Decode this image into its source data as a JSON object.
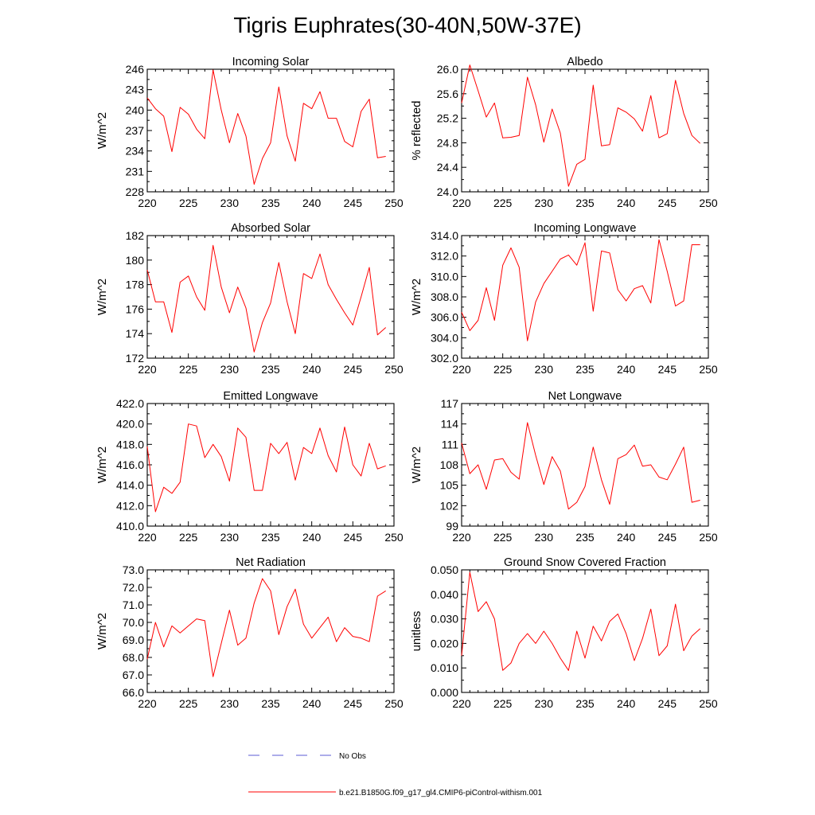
{
  "figure": {
    "title": "Tigris Euphrates(30-40N,50W-37E)",
    "legend": [
      {
        "label": "No Obs",
        "color": "#5b5bd6",
        "dash": "dashed"
      },
      {
        "label": "b.e21.B1850G.f09_g17_gl4.CMIP6-piControl-withism.001",
        "color": "#ff0000",
        "dash": "solid"
      }
    ]
  },
  "chart_data": [
    {
      "type": "line",
      "title": "Incoming Solar",
      "ylabel": "W/m^2",
      "xlim": [
        220,
        250
      ],
      "ylim": [
        228,
        246
      ],
      "xticks": [
        220,
        225,
        230,
        235,
        240,
        245,
        250
      ],
      "yticks": [
        "228",
        "231",
        "234",
        "237",
        "240",
        "243",
        "246"
      ],
      "color": "#ff0000",
      "x": [
        220,
        221,
        222,
        223,
        224,
        225,
        226,
        227,
        228,
        229,
        230,
        231,
        232,
        233,
        234,
        235,
        236,
        237,
        238,
        239,
        240,
        241,
        242,
        243,
        244,
        245,
        246,
        247,
        248,
        249
      ],
      "y": [
        241.8,
        240.2,
        239.1,
        233.9,
        240.4,
        239.4,
        237.2,
        235.8,
        245.9,
        240.0,
        235.2,
        239.5,
        236.2,
        229.1,
        232.9,
        235.2,
        243.4,
        236.2,
        232.5,
        241.0,
        240.2,
        242.7,
        238.8,
        238.8,
        235.4,
        234.6,
        239.8,
        241.6,
        233.0,
        233.2
      ]
    },
    {
      "type": "line",
      "title": "Albedo",
      "ylabel": "% reflected",
      "xlim": [
        220,
        250
      ],
      "ylim": [
        24.0,
        26.0
      ],
      "xticks": [
        220,
        225,
        230,
        235,
        240,
        245,
        250
      ],
      "yticks": [
        "24.0",
        "24.4",
        "24.8",
        "25.2",
        "25.6",
        "26.0"
      ],
      "color": "#ff0000",
      "x": [
        220,
        221,
        222,
        223,
        224,
        225,
        226,
        227,
        228,
        229,
        230,
        231,
        232,
        233,
        234,
        235,
        236,
        237,
        238,
        239,
        240,
        241,
        242,
        243,
        244,
        245,
        246,
        247,
        248,
        249
      ],
      "y": [
        25.45,
        26.07,
        25.65,
        25.22,
        25.45,
        24.88,
        24.89,
        24.92,
        25.87,
        25.42,
        24.81,
        25.35,
        24.96,
        24.09,
        24.45,
        24.53,
        25.74,
        24.75,
        24.77,
        25.37,
        25.3,
        25.19,
        24.99,
        25.57,
        24.88,
        24.95,
        25.82,
        25.28,
        24.92,
        24.79
      ]
    },
    {
      "type": "line",
      "title": "Absorbed Solar",
      "ylabel": "W/m^2",
      "xlim": [
        220,
        250
      ],
      "ylim": [
        172,
        182
      ],
      "xticks": [
        220,
        225,
        230,
        235,
        240,
        245,
        250
      ],
      "yticks": [
        "172",
        "174",
        "176",
        "178",
        "180",
        "182"
      ],
      "color": "#ff0000",
      "x": [
        220,
        221,
        222,
        223,
        224,
        225,
        226,
        227,
        228,
        229,
        230,
        231,
        232,
        233,
        234,
        235,
        236,
        237,
        238,
        239,
        240,
        241,
        242,
        243,
        244,
        245,
        246,
        247,
        248,
        249
      ],
      "y": [
        179.2,
        176.6,
        176.6,
        174.1,
        178.2,
        178.7,
        177.0,
        175.9,
        181.2,
        177.8,
        175.7,
        177.8,
        176.1,
        172.5,
        174.9,
        176.5,
        179.8,
        176.6,
        174.0,
        178.9,
        178.5,
        180.5,
        178.0,
        176.8,
        175.7,
        174.7,
        177.0,
        179.4,
        173.9,
        174.5
      ]
    },
    {
      "type": "line",
      "title": "Incoming Longwave",
      "ylabel": "W/m^2",
      "xlim": [
        220,
        250
      ],
      "ylim": [
        302.0,
        314.0
      ],
      "xticks": [
        220,
        225,
        230,
        235,
        240,
        245,
        250
      ],
      "yticks": [
        "302.0",
        "304.0",
        "306.0",
        "308.0",
        "310.0",
        "312.0",
        "314.0"
      ],
      "color": "#ff0000",
      "x": [
        220,
        221,
        222,
        223,
        224,
        225,
        226,
        227,
        228,
        229,
        230,
        231,
        232,
        233,
        234,
        235,
        236,
        237,
        238,
        239,
        240,
        241,
        242,
        243,
        244,
        245,
        246,
        247,
        248,
        249
      ],
      "y": [
        306.5,
        304.7,
        305.7,
        308.9,
        305.7,
        311.1,
        312.8,
        310.9,
        303.7,
        307.5,
        309.3,
        310.5,
        311.7,
        312.1,
        311.1,
        313.3,
        306.6,
        312.5,
        312.3,
        308.7,
        307.6,
        308.8,
        309.1,
        307.4,
        313.6,
        310.5,
        307.1,
        307.6,
        313.1,
        313.1
      ]
    },
    {
      "type": "line",
      "title": "Emitted Longwave",
      "ylabel": "W/m^2",
      "xlim": [
        220,
        250
      ],
      "ylim": [
        410.0,
        422.0
      ],
      "xticks": [
        220,
        225,
        230,
        235,
        240,
        245,
        250
      ],
      "yticks": [
        "410.0",
        "412.0",
        "414.0",
        "416.0",
        "418.0",
        "420.0",
        "422.0"
      ],
      "color": "#ff0000",
      "x": [
        220,
        221,
        222,
        223,
        224,
        225,
        226,
        227,
        228,
        229,
        230,
        231,
        232,
        233,
        234,
        235,
        236,
        237,
        238,
        239,
        240,
        241,
        242,
        243,
        244,
        245,
        246,
        247,
        248,
        249
      ],
      "y": [
        417.8,
        411.4,
        413.8,
        413.2,
        414.3,
        420.0,
        419.8,
        416.7,
        418.0,
        416.8,
        414.4,
        419.6,
        418.7,
        413.5,
        413.5,
        418.1,
        417.1,
        418.2,
        414.5,
        417.7,
        417.1,
        419.6,
        416.9,
        415.3,
        419.7,
        416.0,
        414.9,
        418.1,
        415.6,
        415.9
      ]
    },
    {
      "type": "line",
      "title": "Net Longwave",
      "ylabel": "W/m^2",
      "xlim": [
        220,
        250
      ],
      "ylim": [
        99,
        117
      ],
      "xticks": [
        220,
        225,
        230,
        235,
        240,
        245,
        250
      ],
      "yticks": [
        "99",
        "102",
        "105",
        "108",
        "111",
        "114",
        "117"
      ],
      "color": "#ff0000",
      "x": [
        220,
        221,
        222,
        223,
        224,
        225,
        226,
        227,
        228,
        229,
        230,
        231,
        232,
        233,
        234,
        235,
        236,
        237,
        238,
        239,
        240,
        241,
        242,
        243,
        244,
        245,
        246,
        247,
        248,
        249
      ],
      "y": [
        111.2,
        106.7,
        108.0,
        104.4,
        108.7,
        108.9,
        106.9,
        105.9,
        114.2,
        109.4,
        105.1,
        109.2,
        107.1,
        101.5,
        102.5,
        104.8,
        110.6,
        105.8,
        102.2,
        108.9,
        109.5,
        110.9,
        107.8,
        108.0,
        106.2,
        105.8,
        108.1,
        110.6,
        102.5,
        102.8
      ]
    },
    {
      "type": "line",
      "title": "Net Radiation",
      "ylabel": "W/m^2",
      "xlim": [
        220,
        250
      ],
      "ylim": [
        66.0,
        73.0
      ],
      "xticks": [
        220,
        225,
        230,
        235,
        240,
        245,
        250
      ],
      "yticks": [
        "66.0",
        "67.0",
        "68.0",
        "69.0",
        "70.0",
        "71.0",
        "72.0",
        "73.0"
      ],
      "color": "#ff0000",
      "x": [
        220,
        221,
        222,
        223,
        224,
        225,
        226,
        227,
        228,
        229,
        230,
        231,
        232,
        233,
        234,
        235,
        236,
        237,
        238,
        239,
        240,
        241,
        242,
        243,
        244,
        245,
        246,
        247,
        248,
        249
      ],
      "y": [
        67.9,
        70.0,
        68.6,
        69.8,
        69.4,
        69.8,
        70.2,
        70.1,
        66.9,
        68.8,
        70.7,
        68.7,
        69.1,
        71.1,
        72.5,
        71.8,
        69.3,
        70.9,
        71.9,
        69.9,
        69.1,
        69.7,
        70.3,
        68.9,
        69.7,
        69.2,
        69.1,
        68.9,
        71.5,
        71.8
      ]
    },
    {
      "type": "line",
      "title": "Ground Snow Covered Fraction",
      "ylabel": "unitless",
      "xlim": [
        220,
        250
      ],
      "ylim": [
        0.0,
        0.05
      ],
      "xticks": [
        220,
        225,
        230,
        235,
        240,
        245,
        250
      ],
      "yticks": [
        "0.000",
        "0.010",
        "0.020",
        "0.030",
        "0.040",
        "0.050"
      ],
      "color": "#ff0000",
      "x": [
        220,
        221,
        222,
        223,
        224,
        225,
        226,
        227,
        228,
        229,
        230,
        231,
        232,
        233,
        234,
        235,
        236,
        237,
        238,
        239,
        240,
        241,
        242,
        243,
        244,
        245,
        246,
        247,
        248,
        249
      ],
      "y": [
        0.015,
        0.049,
        0.033,
        0.037,
        0.03,
        0.009,
        0.012,
        0.02,
        0.024,
        0.02,
        0.025,
        0.02,
        0.014,
        0.009,
        0.025,
        0.014,
        0.027,
        0.021,
        0.029,
        0.032,
        0.024,
        0.013,
        0.022,
        0.034,
        0.015,
        0.019,
        0.036,
        0.017,
        0.023,
        0.026
      ]
    }
  ]
}
